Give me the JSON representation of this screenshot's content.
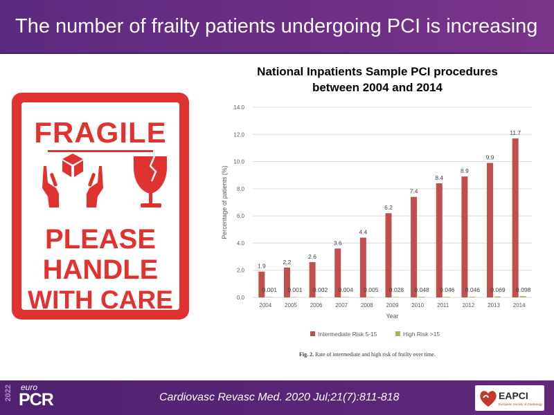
{
  "slide": {
    "title": "The number of frailty patients undergoing PCI is increasing"
  },
  "sign": {
    "headline": "FRAGILE",
    "line1": "PLEASE",
    "line2": "HANDLE",
    "line3": "WITH CARE",
    "icons": [
      "hands-holding-box-icon",
      "broken-glass-icon"
    ],
    "color": "#e0322f"
  },
  "chart_title_line1": "National Inpatients Sample PCI procedures",
  "chart_title_line2": "between 2004 and 2014",
  "caption": {
    "label": "Fig. 2.",
    "text": "Rate of intermediate and high risk of frailty over time."
  },
  "chart_data": {
    "type": "bar",
    "title": "National Inpatients Sample PCI procedures between 2004 and 2014",
    "xlabel": "Year",
    "ylabel": "Percentage of patients (%)",
    "ylim": [
      0,
      14
    ],
    "yticks": [
      "0.0",
      "2.0",
      "4.0",
      "6.0",
      "8.0",
      "10.0",
      "12.0",
      "14.0"
    ],
    "categories": [
      "2004",
      "2005",
      "2006",
      "2007",
      "2008",
      "2009",
      "2010",
      "2011",
      "2012",
      "2013",
      "2014"
    ],
    "series": [
      {
        "name": "Intermediate Risk 5-15",
        "color": "#c0504d",
        "values": [
          1.9,
          2.2,
          2.6,
          3.6,
          4.4,
          6.2,
          7.4,
          8.4,
          8.9,
          9.9,
          11.7
        ],
        "labels": [
          "1.9",
          "2.2",
          "2.6",
          "3.6",
          "4.4",
          "6.2",
          "7.4",
          "8.4",
          "8.9",
          "9.9",
          "11.7"
        ]
      },
      {
        "name": "High Risk >15",
        "color": "#9bbb59",
        "values": [
          0.001,
          0.001,
          0.002,
          0.004,
          0.005,
          0.028,
          0.048,
          0.046,
          0.046,
          0.069,
          0.098
        ],
        "labels": [
          "0.001",
          "0.001",
          "0.002",
          "0.004",
          "0.005",
          "0.028",
          "0.048",
          "0.046",
          "0.046",
          "0.069",
          "0.098"
        ]
      }
    ],
    "legend_position": "bottom"
  },
  "footer": {
    "year": "2022",
    "brand_small": "euro",
    "brand": "PCR",
    "citation": "Cardiovasc Revasc Med. 2020 Jul;21(7):811-818",
    "partner": "EAPCI",
    "partner_sub": "European Society of Cardiology"
  }
}
